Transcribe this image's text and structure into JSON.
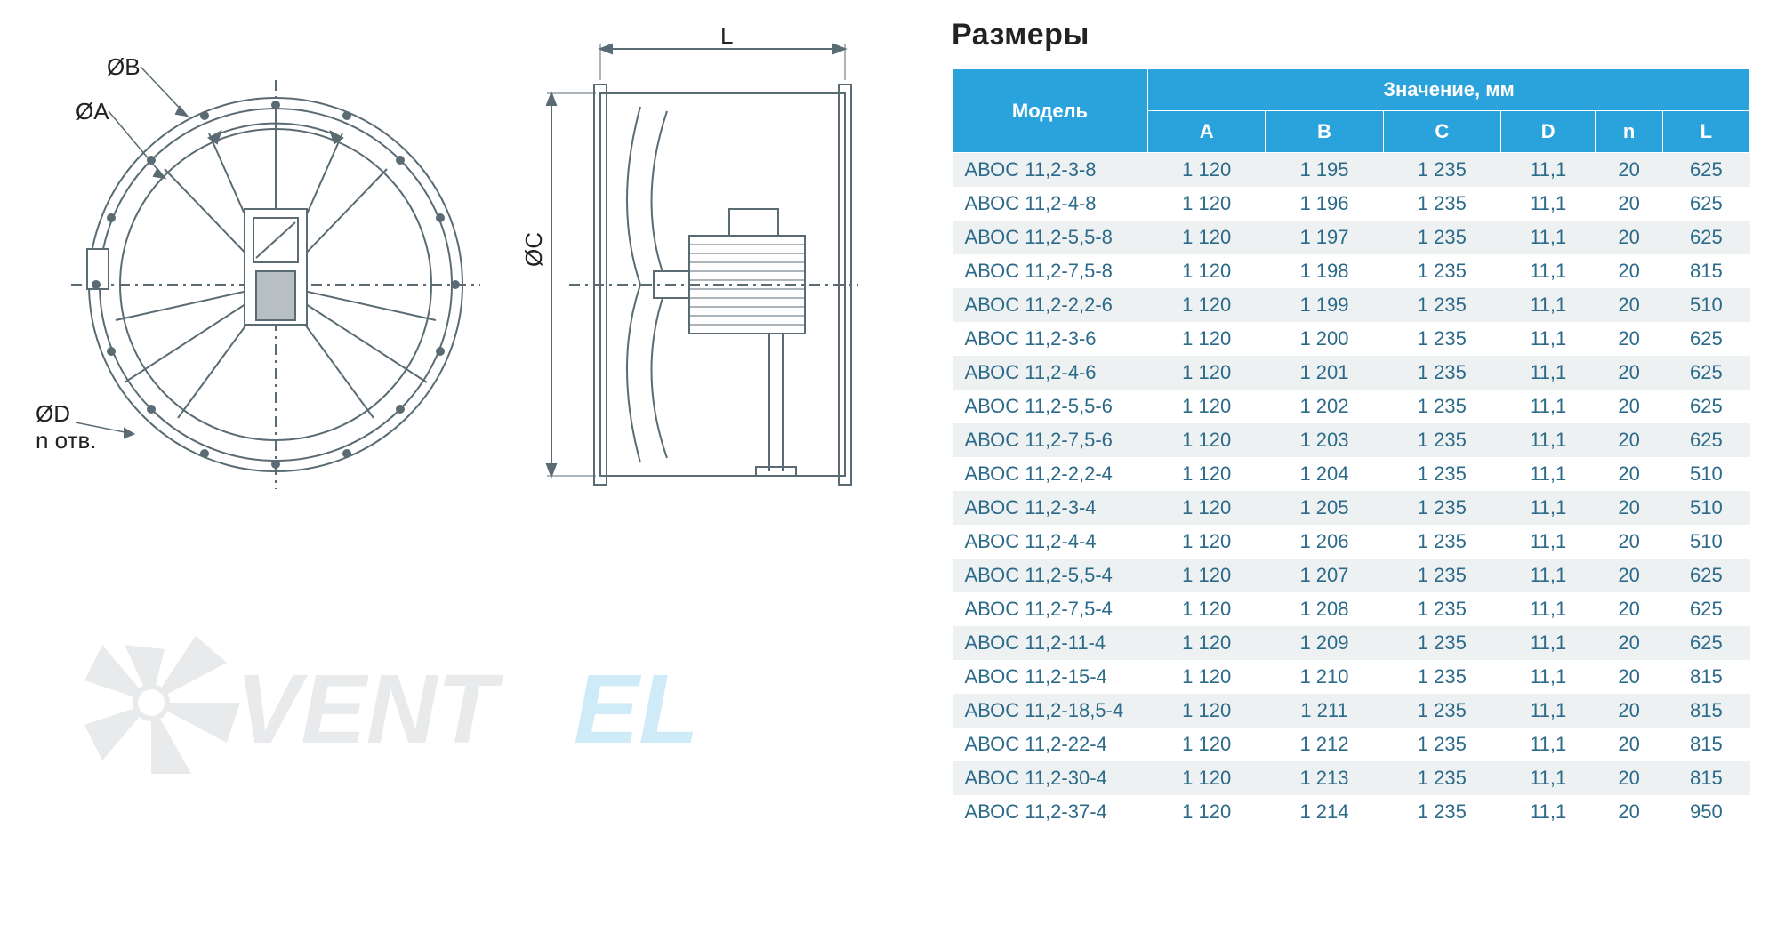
{
  "title": "Размеры",
  "colors": {
    "header_bg": "#2aa2db",
    "header_text": "#ffffff",
    "row_odd_bg": "#eef1f2",
    "row_even_bg": "#ffffff",
    "cell_text": "#2c6a8a",
    "title_text": "#222222",
    "drawing_stroke": "#5a6b73",
    "watermark_gray": "#b8bfc3",
    "watermark_blue": "#6ac1e8"
  },
  "drawing_labels": {
    "ob": "ØB",
    "oa": "ØA",
    "od": "ØD",
    "notv": "n отв.",
    "oc": "ØC",
    "l": "L"
  },
  "watermark_text_parts": {
    "p1": "VENT",
    "p2": "EL"
  },
  "table": {
    "header_model": "Модель",
    "header_value": "Значение, мм",
    "columns": [
      "A",
      "B",
      "C",
      "D",
      "n",
      "L"
    ],
    "rows": [
      {
        "model": "АВОС 11,2-3-8",
        "A": "1 120",
        "B": "1 195",
        "C": "1 235",
        "D": "11,1",
        "n": "20",
        "L": "625"
      },
      {
        "model": "АВОС 11,2-4-8",
        "A": "1 120",
        "B": "1 196",
        "C": "1 235",
        "D": "11,1",
        "n": "20",
        "L": "625"
      },
      {
        "model": "АВОС 11,2-5,5-8",
        "A": "1 120",
        "B": "1 197",
        "C": "1 235",
        "D": "11,1",
        "n": "20",
        "L": "625"
      },
      {
        "model": "АВОС 11,2-7,5-8",
        "A": "1 120",
        "B": "1 198",
        "C": "1 235",
        "D": "11,1",
        "n": "20",
        "L": "815"
      },
      {
        "model": "АВОС 11,2-2,2-6",
        "A": "1 120",
        "B": "1 199",
        "C": "1 235",
        "D": "11,1",
        "n": "20",
        "L": "510"
      },
      {
        "model": "АВОС 11,2-3-6",
        "A": "1 120",
        "B": "1 200",
        "C": "1 235",
        "D": "11,1",
        "n": "20",
        "L": "625"
      },
      {
        "model": "АВОС 11,2-4-6",
        "A": "1 120",
        "B": "1 201",
        "C": "1 235",
        "D": "11,1",
        "n": "20",
        "L": "625"
      },
      {
        "model": "АВОС 11,2-5,5-6",
        "A": "1 120",
        "B": "1 202",
        "C": "1 235",
        "D": "11,1",
        "n": "20",
        "L": "625"
      },
      {
        "model": "АВОС 11,2-7,5-6",
        "A": "1 120",
        "B": "1 203",
        "C": "1 235",
        "D": "11,1",
        "n": "20",
        "L": "625"
      },
      {
        "model": "АВОС 11,2-2,2-4",
        "A": "1 120",
        "B": "1 204",
        "C": "1 235",
        "D": "11,1",
        "n": "20",
        "L": "510"
      },
      {
        "model": "АВОС 11,2-3-4",
        "A": "1 120",
        "B": "1 205",
        "C": "1 235",
        "D": "11,1",
        "n": "20",
        "L": "510"
      },
      {
        "model": "АВОС 11,2-4-4",
        "A": "1 120",
        "B": "1 206",
        "C": "1 235",
        "D": "11,1",
        "n": "20",
        "L": "510"
      },
      {
        "model": "АВОС 11,2-5,5-4",
        "A": "1 120",
        "B": "1 207",
        "C": "1 235",
        "D": "11,1",
        "n": "20",
        "L": "625"
      },
      {
        "model": "АВОС 11,2-7,5-4",
        "A": "1 120",
        "B": "1 208",
        "C": "1 235",
        "D": "11,1",
        "n": "20",
        "L": "625"
      },
      {
        "model": "АВОС 11,2-11-4",
        "A": "1 120",
        "B": "1 209",
        "C": "1 235",
        "D": "11,1",
        "n": "20",
        "L": "625"
      },
      {
        "model": "АВОС 11,2-15-4",
        "A": "1 120",
        "B": "1 210",
        "C": "1 235",
        "D": "11,1",
        "n": "20",
        "L": "815"
      },
      {
        "model": "АВОС 11,2-18,5-4",
        "A": "1 120",
        "B": "1 211",
        "C": "1 235",
        "D": "11,1",
        "n": "20",
        "L": "815"
      },
      {
        "model": "АВОС 11,2-22-4",
        "A": "1 120",
        "B": "1 212",
        "C": "1 235",
        "D": "11,1",
        "n": "20",
        "L": "815"
      },
      {
        "model": "АВОС 11,2-30-4",
        "A": "1 120",
        "B": "1 213",
        "C": "1 235",
        "D": "11,1",
        "n": "20",
        "L": "815"
      },
      {
        "model": "АВОС 11,2-37-4",
        "A": "1 120",
        "B": "1 214",
        "C": "1 235",
        "D": "11,1",
        "n": "20",
        "L": "950"
      }
    ]
  }
}
